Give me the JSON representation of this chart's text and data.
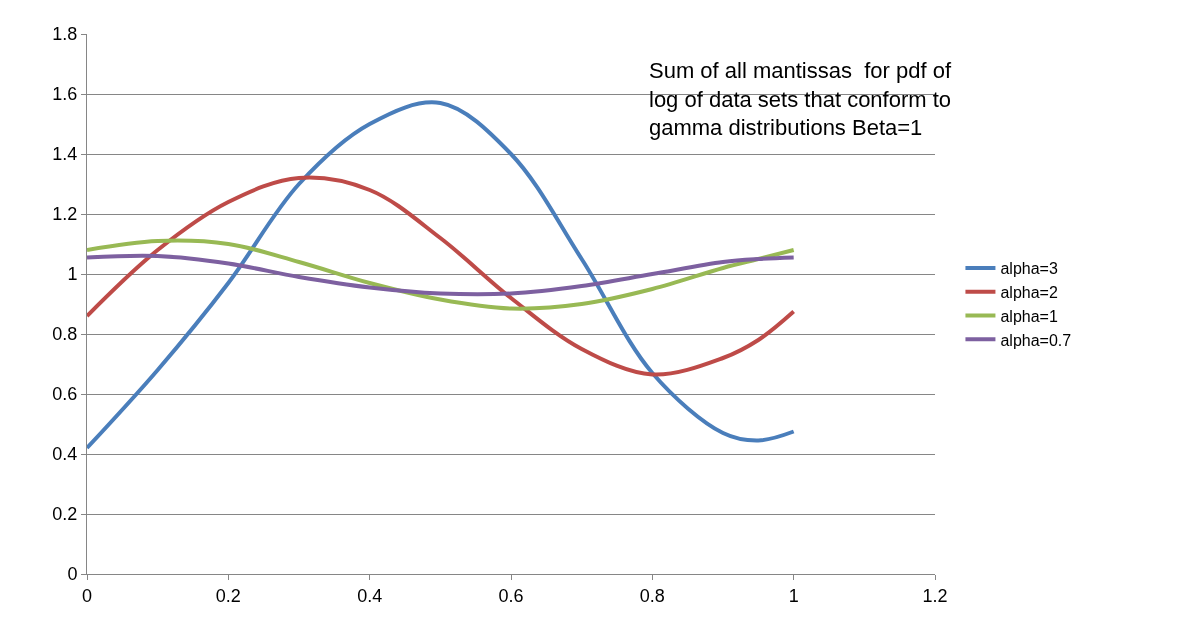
{
  "chart_data": {
    "type": "line",
    "title": "Sum of all mantissas  for pdf of log of data sets that conform to gamma distributions Beta=1",
    "x": [
      0,
      0.1,
      0.2,
      0.3,
      0.4,
      0.5,
      0.6,
      0.7,
      0.8,
      0.9,
      0.95,
      1
    ],
    "series": [
      {
        "name": "alpha=3",
        "color": "#4a7ebb",
        "values": [
          0.42,
          0.68,
          0.97,
          1.3,
          1.5,
          1.57,
          1.4,
          1.05,
          0.67,
          0.47,
          0.445,
          0.475
        ]
      },
      {
        "name": "alpha=2",
        "color": "#be4b48",
        "values": [
          0.86,
          1.08,
          1.24,
          1.32,
          1.28,
          1.12,
          0.92,
          0.75,
          0.665,
          0.72,
          0.78,
          0.875
        ]
      },
      {
        "name": "alpha=1",
        "color": "#98b954",
        "values": [
          1.08,
          1.11,
          1.1,
          1.04,
          0.97,
          0.915,
          0.885,
          0.9,
          0.95,
          1.02,
          1.05,
          1.08
        ]
      },
      {
        "name": "alpha=0.7",
        "color": "#7d60a0",
        "values": [
          1.055,
          1.06,
          1.035,
          0.99,
          0.955,
          0.935,
          0.935,
          0.96,
          1.0,
          1.04,
          1.05,
          1.055
        ]
      }
    ],
    "xlim": [
      0,
      1.2
    ],
    "xticks": [
      0,
      0.2,
      0.4,
      0.6,
      0.8,
      1,
      1.2
    ],
    "ylim": [
      0,
      1.8
    ],
    "yticks": [
      0,
      0.2,
      0.4,
      0.6,
      0.8,
      1,
      1.2,
      1.4,
      1.6,
      1.8
    ],
    "grid": "y",
    "legend": "right",
    "marker": "none",
    "line_style": "solid"
  }
}
